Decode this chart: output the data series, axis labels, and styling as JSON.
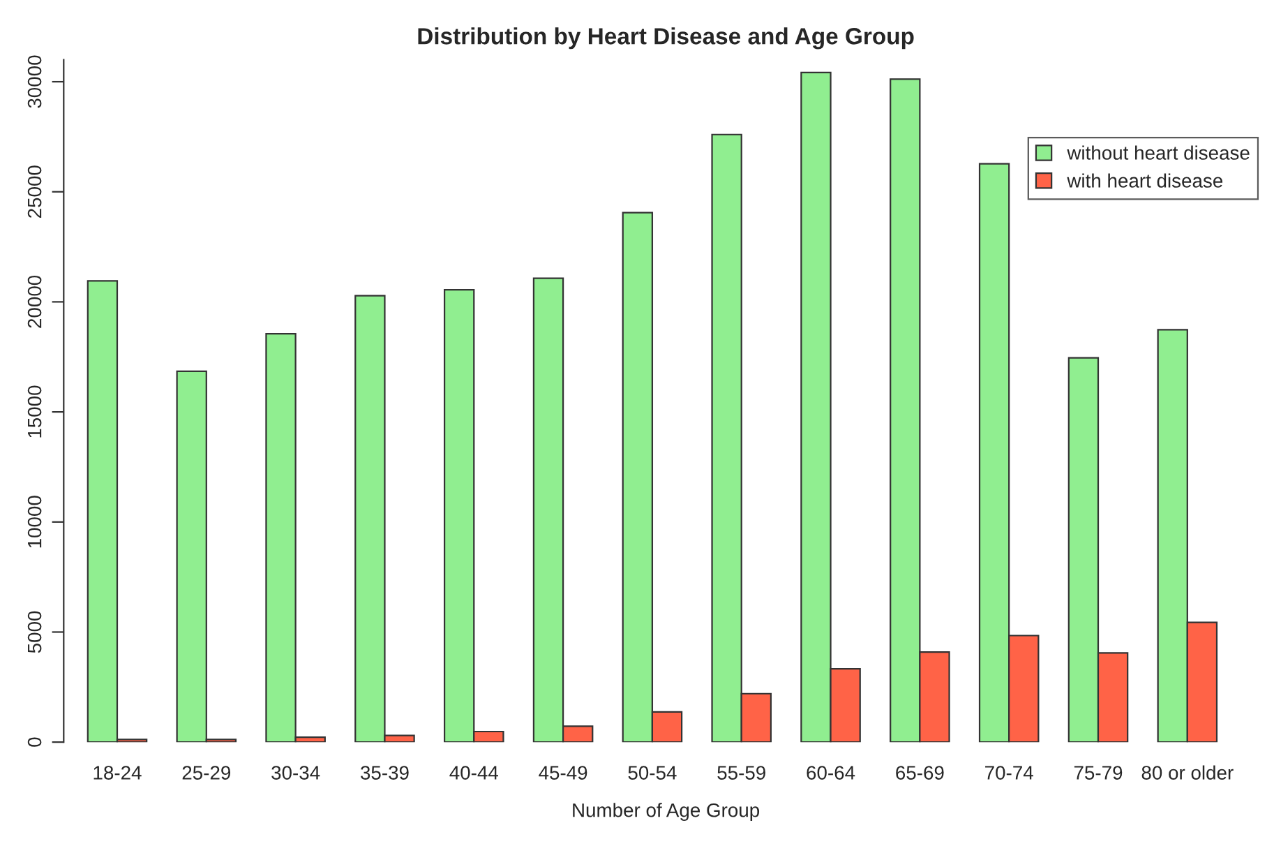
{
  "chart_data": {
    "type": "bar",
    "title": "Distribution by Heart Disease and Age Group",
    "xlabel": "Number of Age Group",
    "categories": [
      "18-24",
      "25-29",
      "30-34",
      "35-39",
      "40-44",
      "45-49",
      "50-54",
      "55-59",
      "60-64",
      "65-69",
      "70-74",
      "75-79",
      "80 or older"
    ],
    "series": [
      {
        "name": "without heart disease",
        "color": "#90ee90",
        "values": [
          20950,
          16850,
          18550,
          20280,
          20550,
          21070,
          24050,
          27600,
          30420,
          30120,
          26270,
          17460,
          18730
        ]
      },
      {
        "name": "with heart disease",
        "color": "#ff6347",
        "values": [
          120,
          120,
          220,
          300,
          480,
          720,
          1370,
          2200,
          3330,
          4090,
          4840,
          4050,
          5440
        ]
      }
    ],
    "ylim": [
      0,
      31000
    ],
    "yticks": [
      0,
      5000,
      10000,
      15000,
      20000,
      25000,
      30000
    ],
    "grid": false,
    "legend": "top right"
  }
}
